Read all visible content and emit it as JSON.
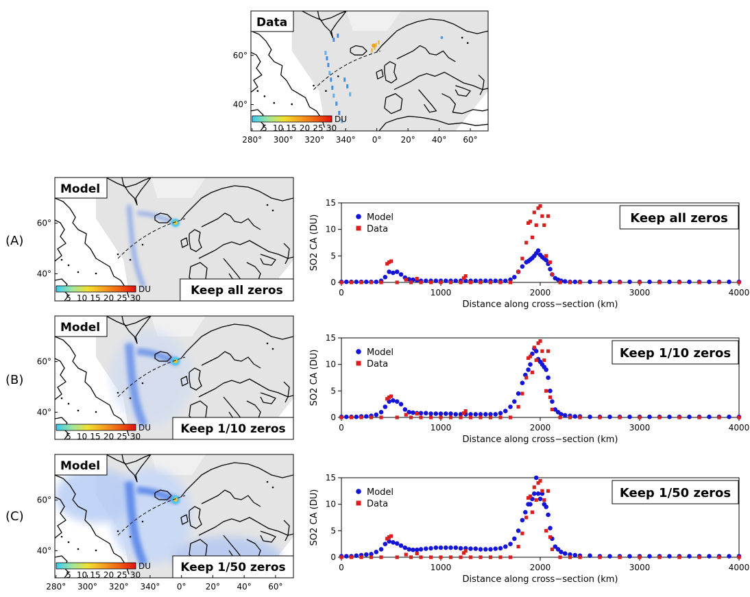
{
  "maps": [
    {
      "title": "Data",
      "tag": "",
      "lat_ticks": [
        "60°",
        "40°"
      ],
      "lon_ticks": [
        "280°",
        "300°",
        "320°",
        "340°",
        "0°",
        "20°",
        "40°",
        "60°"
      ],
      "colorbar": {
        "ticks": [
          "5",
          "10",
          "15",
          "20",
          "25",
          "30"
        ],
        "unit": "DU",
        "colors": [
          "#3cc8f0",
          "#9ee6a0",
          "#f2e030",
          "#f6a020",
          "#ee6010",
          "#e01010"
        ]
      },
      "shading": "data"
    },
    {
      "title": "Model",
      "tag": "(A)",
      "label": "Keep all zeros",
      "lat_ticks": [
        "60°",
        "40°"
      ],
      "colorbar": {
        "ticks": [
          "5",
          "10",
          "15",
          "20",
          "25",
          "30"
        ],
        "unit": "DU"
      },
      "shading": "low"
    },
    {
      "title": "Model",
      "tag": "(B)",
      "label": "Keep 1/10 zeros",
      "lat_ticks": [
        "60°",
        "40°"
      ],
      "colorbar": {
        "ticks": [
          "5",
          "10",
          "15",
          "20",
          "25",
          "30"
        ],
        "unit": "DU"
      },
      "shading": "mid"
    },
    {
      "title": "Model",
      "tag": "(C)",
      "label": "Keep 1/50 zeros",
      "lat_ticks": [
        "60°",
        "40°"
      ],
      "lon_ticks": [
        "280°",
        "300°",
        "320°",
        "340°",
        "0°",
        "20°",
        "40°",
        "60°"
      ],
      "colorbar": {
        "ticks": [
          "5",
          "10",
          "15",
          "20",
          "25",
          "30"
        ],
        "unit": "DU"
      },
      "shading": "high"
    }
  ],
  "chart_data": [
    {
      "type": "scatter",
      "panel": "(A)",
      "label": "Keep all zeros",
      "xlabel": "Distance along cross−section (km)",
      "ylabel": "SO2 CA (DU)",
      "xlim": [
        0,
        4000
      ],
      "ylim": [
        0,
        15
      ],
      "xticks": [
        0,
        1000,
        2000,
        3000,
        4000
      ],
      "yticks": [
        0,
        5,
        10,
        15
      ],
      "legend": "top-left",
      "colors": {
        "Model": "#1414d8",
        "Data": "#d81e1e"
      },
      "series": [
        {
          "name": "Model",
          "x": [
            0,
            50,
            100,
            150,
            200,
            250,
            300,
            350,
            400,
            440,
            480,
            520,
            560,
            600,
            640,
            680,
            720,
            760,
            800,
            850,
            900,
            950,
            1000,
            1050,
            1100,
            1150,
            1200,
            1250,
            1300,
            1350,
            1400,
            1450,
            1500,
            1550,
            1600,
            1650,
            1700,
            1740,
            1780,
            1820,
            1860,
            1880,
            1900,
            1920,
            1940,
            1960,
            1980,
            2000,
            2020,
            2040,
            2060,
            2080,
            2100,
            2120,
            2150,
            2180,
            2210,
            2250,
            2300,
            2350,
            2400,
            2500,
            2600,
            2700,
            2800,
            2900,
            3000,
            3100,
            3200,
            3300,
            3400,
            3500,
            3600,
            3700,
            3800,
            3900,
            4000
          ],
          "y": [
            0.1,
            0.1,
            0.1,
            0.1,
            0.1,
            0.1,
            0.1,
            0.1,
            0.3,
            1,
            2,
            1.8,
            2,
            1.5,
            0.9,
            0.6,
            0.5,
            0.4,
            0.3,
            0.3,
            0.3,
            0.3,
            0.3,
            0.3,
            0.3,
            0.3,
            0.3,
            0.3,
            0.3,
            0.3,
            0.3,
            0.3,
            0.3,
            0.3,
            0.3,
            0.3,
            0.5,
            1,
            2,
            3,
            3.8,
            4,
            4.3,
            4.6,
            5,
            5.5,
            6,
            5.2,
            4.8,
            4.5,
            4.2,
            3.5,
            2.5,
            1.5,
            0.8,
            0.5,
            0.3,
            0.2,
            0.1,
            0.1,
            0.1,
            0.1,
            0.1,
            0.1,
            0.1,
            0.1,
            0.1,
            0.1,
            0.1,
            0.1,
            0.1,
            0.1,
            0.1,
            0.1,
            0.1,
            0.1,
            0.1
          ]
        },
        {
          "name": "Data",
          "x": [
            0,
            100,
            200,
            300,
            400,
            460,
            480,
            500,
            560,
            650,
            700,
            760,
            800,
            900,
            1000,
            1100,
            1200,
            1230,
            1250,
            1300,
            1400,
            1500,
            1600,
            1700,
            1780,
            1820,
            1860,
            1880,
            1900,
            1920,
            1940,
            1960,
            1980,
            2000,
            2020,
            2040,
            2060,
            2080,
            2100,
            2120,
            2200,
            2300,
            2400,
            2600,
            2800,
            3000,
            3200,
            3400,
            3600,
            3800,
            4000
          ],
          "y": [
            0,
            0,
            0,
            0,
            0,
            3.5,
            3.8,
            4,
            0,
            0.5,
            0,
            0.7,
            0,
            0,
            0,
            0,
            0,
            0.8,
            1.2,
            0,
            0,
            0,
            0,
            0,
            2,
            4.5,
            7.5,
            11.2,
            11.5,
            8.5,
            13.2,
            10.8,
            14,
            14.4,
            12.5,
            10.8,
            5,
            12.5,
            3.8,
            1.5,
            0,
            0,
            0,
            0,
            0,
            0,
            0,
            0,
            0,
            0,
            0
          ]
        }
      ]
    },
    {
      "type": "scatter",
      "panel": "(B)",
      "label": "Keep 1/10 zeros",
      "xlabel": "Distance along cross−section (km)",
      "ylabel": "SO2 CA (DU)",
      "xlim": [
        0,
        4000
      ],
      "ylim": [
        0,
        15
      ],
      "xticks": [
        0,
        1000,
        2000,
        3000,
        4000
      ],
      "yticks": [
        0,
        5,
        10,
        15
      ],
      "legend": "top-left",
      "colors": {
        "Model": "#1414d8",
        "Data": "#d81e1e"
      },
      "series": [
        {
          "name": "Model",
          "x": [
            0,
            50,
            100,
            150,
            200,
            250,
            300,
            350,
            400,
            440,
            480,
            520,
            560,
            600,
            640,
            680,
            720,
            760,
            800,
            850,
            900,
            950,
            1000,
            1050,
            1100,
            1150,
            1200,
            1250,
            1300,
            1350,
            1400,
            1450,
            1500,
            1550,
            1600,
            1650,
            1700,
            1740,
            1780,
            1820,
            1850,
            1880,
            1900,
            1920,
            1940,
            1960,
            1980,
            2000,
            2020,
            2040,
            2060,
            2080,
            2100,
            2120,
            2150,
            2180,
            2210,
            2250,
            2300,
            2350,
            2400,
            2500,
            2600,
            2700,
            2800,
            2900,
            3000,
            3100,
            3200,
            3300,
            3400,
            3500,
            3600,
            3700,
            3800,
            3900,
            4000
          ],
          "y": [
            0.1,
            0.1,
            0.1,
            0.1,
            0.2,
            0.2,
            0.3,
            0.5,
            1,
            2,
            3,
            3.2,
            3,
            2.5,
            1.5,
            1,
            0.9,
            0.8,
            0.8,
            0.8,
            0.7,
            0.7,
            0.7,
            0.7,
            0.7,
            0.6,
            0.6,
            0.6,
            0.6,
            0.6,
            0.6,
            0.6,
            0.6,
            0.6,
            0.8,
            1.2,
            2,
            3,
            4.5,
            6.5,
            8,
            9,
            10,
            12,
            13,
            12.5,
            11,
            10.5,
            10,
            9.5,
            9,
            7.5,
            5,
            3,
            1.5,
            1,
            0.6,
            0.4,
            0.3,
            0.2,
            0.2,
            0.1,
            0.1,
            0.1,
            0.1,
            0.1,
            0.1,
            0.1,
            0.1,
            0.1,
            0.1,
            0.1,
            0.1,
            0.1,
            0.1,
            0.1,
            0.1
          ]
        },
        {
          "name": "Data",
          "x": [
            0,
            100,
            200,
            300,
            400,
            460,
            480,
            500,
            560,
            650,
            700,
            760,
            800,
            900,
            1000,
            1100,
            1200,
            1230,
            1250,
            1300,
            1400,
            1500,
            1600,
            1700,
            1780,
            1820,
            1860,
            1880,
            1900,
            1920,
            1940,
            1960,
            1980,
            2000,
            2020,
            2040,
            2060,
            2080,
            2100,
            2120,
            2200,
            2300,
            2400,
            2600,
            2800,
            3000,
            3200,
            3400,
            3600,
            3800,
            4000
          ],
          "y": [
            0,
            0,
            0,
            0,
            0,
            3.5,
            3.8,
            4,
            0,
            0.5,
            0,
            0.7,
            0,
            0,
            0,
            0,
            0,
            0.8,
            1.2,
            0,
            0,
            0,
            0,
            0,
            2,
            4.5,
            7.5,
            11.2,
            11.5,
            8.5,
            13.2,
            10.8,
            14,
            14.4,
            12.5,
            10.8,
            5,
            12.5,
            3.8,
            1.5,
            0,
            0,
            0,
            0,
            0,
            0,
            0,
            0,
            0,
            0,
            0
          ]
        }
      ]
    },
    {
      "type": "scatter",
      "panel": "(C)",
      "label": "Keep 1/50 zeros",
      "xlabel": "Distance along cross−section (km)",
      "ylabel": "SO2 CA (DU)",
      "xlim": [
        0,
        4000
      ],
      "ylim": [
        0,
        15
      ],
      "xticks": [
        0,
        1000,
        2000,
        3000,
        4000
      ],
      "yticks": [
        0,
        5,
        10,
        15
      ],
      "legend": "top-left",
      "colors": {
        "Model": "#1414d8",
        "Data": "#d81e1e"
      },
      "series": [
        {
          "name": "Model",
          "x": [
            0,
            50,
            100,
            150,
            200,
            250,
            300,
            350,
            400,
            440,
            480,
            520,
            560,
            600,
            640,
            680,
            720,
            760,
            800,
            850,
            900,
            950,
            1000,
            1050,
            1100,
            1150,
            1200,
            1250,
            1300,
            1350,
            1400,
            1450,
            1500,
            1550,
            1600,
            1650,
            1700,
            1740,
            1780,
            1820,
            1850,
            1880,
            1900,
            1920,
            1940,
            1960,
            1980,
            2000,
            2020,
            2040,
            2060,
            2080,
            2100,
            2120,
            2150,
            2180,
            2210,
            2250,
            2300,
            2350,
            2400,
            2500,
            2600,
            2700,
            2800,
            2900,
            3000,
            3100,
            3200,
            3300,
            3400,
            3500,
            3600,
            3700,
            3800,
            3900,
            4000
          ],
          "y": [
            0.2,
            0.2,
            0.2,
            0.3,
            0.4,
            0.5,
            0.6,
            1,
            1.5,
            2.5,
            3,
            2.8,
            2.6,
            2.2,
            1.8,
            1.5,
            1.4,
            1.4,
            1.5,
            1.6,
            1.7,
            1.8,
            1.8,
            1.8,
            1.8,
            1.8,
            1.7,
            1.7,
            1.6,
            1.6,
            1.5,
            1.5,
            1.5,
            1.6,
            1.7,
            2,
            2.5,
            3.5,
            5,
            7,
            8.5,
            10,
            10,
            11,
            12,
            15,
            12,
            11,
            12,
            10,
            9.5,
            8,
            5.5,
            3.5,
            2,
            1.5,
            1,
            0.7,
            0.5,
            0.4,
            0.3,
            0.3,
            0.2,
            0.2,
            0.2,
            0.2,
            0.2,
            0.2,
            0.2,
            0.2,
            0.2,
            0.2,
            0.2,
            0.2,
            0.2,
            0.2,
            0.2
          ]
        },
        {
          "name": "Data",
          "x": [
            0,
            100,
            200,
            300,
            400,
            460,
            480,
            500,
            560,
            650,
            700,
            760,
            800,
            900,
            1000,
            1100,
            1200,
            1230,
            1250,
            1300,
            1400,
            1500,
            1600,
            1700,
            1780,
            1820,
            1860,
            1880,
            1900,
            1920,
            1940,
            1960,
            1980,
            2000,
            2020,
            2040,
            2060,
            2080,
            2100,
            2120,
            2200,
            2300,
            2400,
            2600,
            2800,
            3000,
            3200,
            3400,
            3600,
            3800,
            4000
          ],
          "y": [
            0,
            0,
            0,
            0,
            0,
            3.5,
            3.8,
            4,
            0,
            0.5,
            0,
            0.7,
            0,
            0,
            0,
            0,
            0,
            0.8,
            1.2,
            0,
            0,
            0,
            0,
            0,
            2,
            4.5,
            7.5,
            11.2,
            11.5,
            8.5,
            13.2,
            10.8,
            14,
            14.4,
            12.5,
            10.8,
            5,
            12.5,
            3.8,
            1.5,
            0,
            0,
            0,
            0,
            0,
            0,
            0,
            0,
            0,
            0,
            0
          ]
        }
      ]
    }
  ]
}
